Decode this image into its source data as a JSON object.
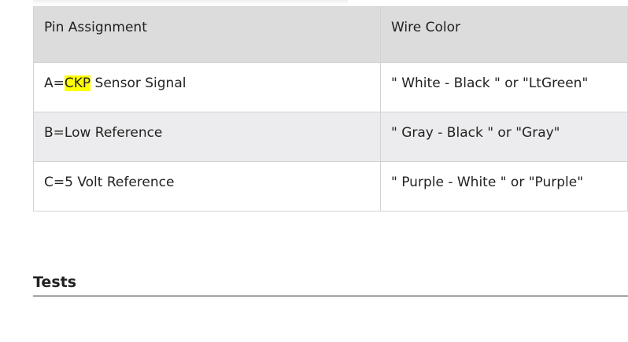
{
  "table": {
    "headers": [
      "Pin Assignment",
      "Wire Color"
    ],
    "rows": [
      {
        "pin_prefix": "A=",
        "pin_highlight": "CKP",
        "pin_suffix": " Sensor Signal",
        "wire": "\" White - Black \" or \"LtGreen\""
      },
      {
        "pin": "B=Low Reference",
        "wire": "\" Gray - Black \" or \"Gray\""
      },
      {
        "pin": "C=5 Volt Reference",
        "wire": "\" Purple - White \" or \"Purple\""
      }
    ]
  },
  "section": {
    "title": "Tests"
  },
  "colors": {
    "highlight": "#ffff00",
    "header_bg": "#dcdcdc",
    "alt_row_bg": "#ececee"
  }
}
